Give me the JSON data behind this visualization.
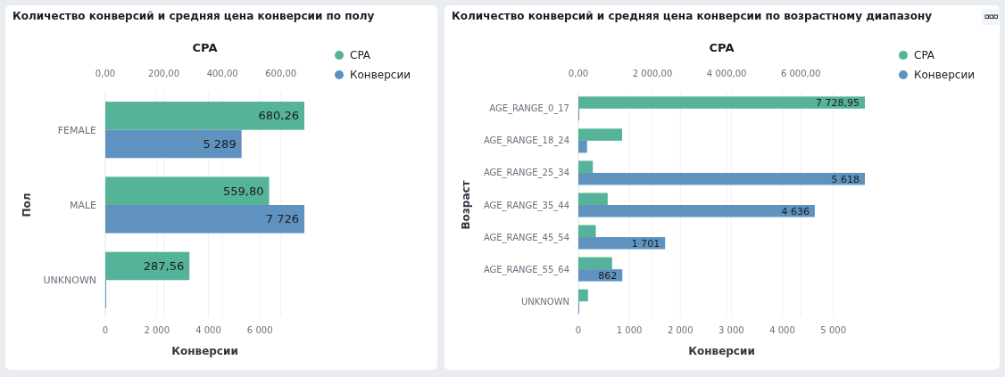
{
  "chart_data": [
    {
      "type": "bar",
      "orientation": "horizontal",
      "title": "Количество конверсий и средняя цена конверсии по полу",
      "x2label": "CPA",
      "xlabel": "Конверсии",
      "ylabel": "Пол",
      "categories": [
        "FEMALE",
        "MALE",
        "UNKNOWN"
      ],
      "series": [
        {
          "name": "CPA",
          "color": "#54b399",
          "axis": "x2",
          "values": [
            680.26,
            559.8,
            287.56
          ],
          "value_labels": [
            "680,26",
            "559,80",
            "287,56"
          ]
        },
        {
          "name": "Конверсии",
          "color": "#6092c0",
          "values": [
            5289,
            7726,
            0
          ],
          "value_labels": [
            "5 289",
            "7 726",
            null
          ]
        }
      ],
      "xlim": [
        0,
        7726
      ],
      "xticks": [
        0,
        {
          "value": 2000,
          "label": "2 000"
        },
        {
          "value": 4000,
          "label": "4 000"
        },
        {
          "value": 6000,
          "label": "6 000"
        }
      ],
      "x2lim": [
        0,
        680.26
      ],
      "x2ticks": [
        {
          "value": 0,
          "label": "0,00"
        },
        {
          "value": 200,
          "label": "200,00"
        },
        {
          "value": 400,
          "label": "400,00"
        },
        {
          "value": 600,
          "label": "600,00"
        }
      ],
      "grid": true,
      "legend": "top right"
    },
    {
      "type": "bar",
      "orientation": "horizontal",
      "title": "Количество конверсий и средняя цена конверсии по возрастному диапазону",
      "x2label": "CPA",
      "xlabel": "Конверсии",
      "ylabel": "Возраст",
      "categories": [
        "AGE_RANGE_0_17",
        "AGE_RANGE_18_24",
        "AGE_RANGE_25_34",
        "AGE_RANGE_35_44",
        "AGE_RANGE_45_54",
        "AGE_RANGE_55_64",
        "UNKNOWN"
      ],
      "series": [
        {
          "name": "CPA",
          "color": "#54b399",
          "axis": "x2",
          "values": [
            7728.95,
            1180,
            390,
            790,
            470,
            910,
            260
          ],
          "value_labels": [
            "7 728,95",
            null,
            null,
            null,
            null,
            null,
            null
          ]
        },
        {
          "name": "Конверсии",
          "color": "#6092c0",
          "values": [
            0,
            170,
            5618,
            4636,
            1701,
            862,
            0
          ],
          "value_labels": [
            null,
            null,
            "5 618",
            "4 636",
            "1 701",
            "862",
            null
          ]
        }
      ],
      "xlim": [
        0,
        5618
      ],
      "xticks": [
        0,
        {
          "value": 1000,
          "label": "1 000"
        },
        {
          "value": 2000,
          "label": "2 000"
        },
        {
          "value": 3000,
          "label": "3 000"
        },
        {
          "value": 4000,
          "label": "4 000"
        },
        {
          "value": 5000,
          "label": "5 000"
        }
      ],
      "x2lim": [
        0,
        7728.95
      ],
      "x2ticks": [
        {
          "value": 0,
          "label": "0,00"
        },
        {
          "value": 2000,
          "label": "2 000,00"
        },
        {
          "value": 4000,
          "label": "4 000,00"
        },
        {
          "value": 6000,
          "label": "6 000,00"
        }
      ],
      "grid": true,
      "legend": "top right"
    }
  ]
}
